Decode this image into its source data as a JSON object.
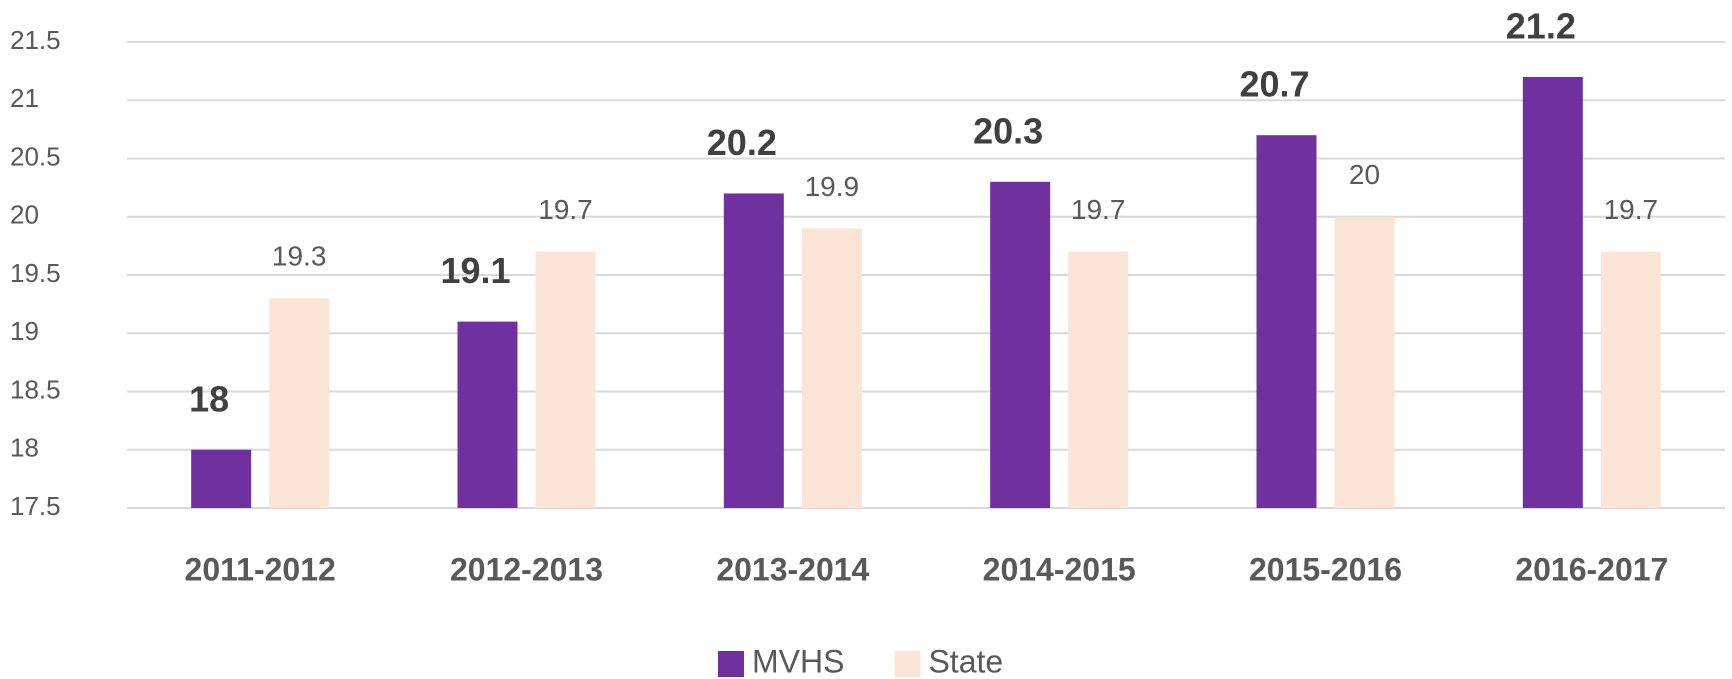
{
  "chart_data": {
    "type": "bar",
    "categories": [
      "2011-2012",
      "2012-2013",
      "2013-2014",
      "2014-2015",
      "2015-2016",
      "2016-2017"
    ],
    "series": [
      {
        "name": "MVHS",
        "color": "#7030a0",
        "values": [
          18,
          19.1,
          20.2,
          20.3,
          20.7,
          21.2
        ]
      },
      {
        "name": "State",
        "color": "#fbe5d6",
        "values": [
          19.3,
          19.7,
          19.9,
          19.7,
          20,
          19.7
        ]
      }
    ],
    "ylim": [
      17.5,
      21.5
    ],
    "yticks": [
      17.5,
      18,
      18.5,
      19,
      19.5,
      20,
      20.5,
      21,
      21.5
    ],
    "grid": true,
    "legend": "bottom"
  }
}
